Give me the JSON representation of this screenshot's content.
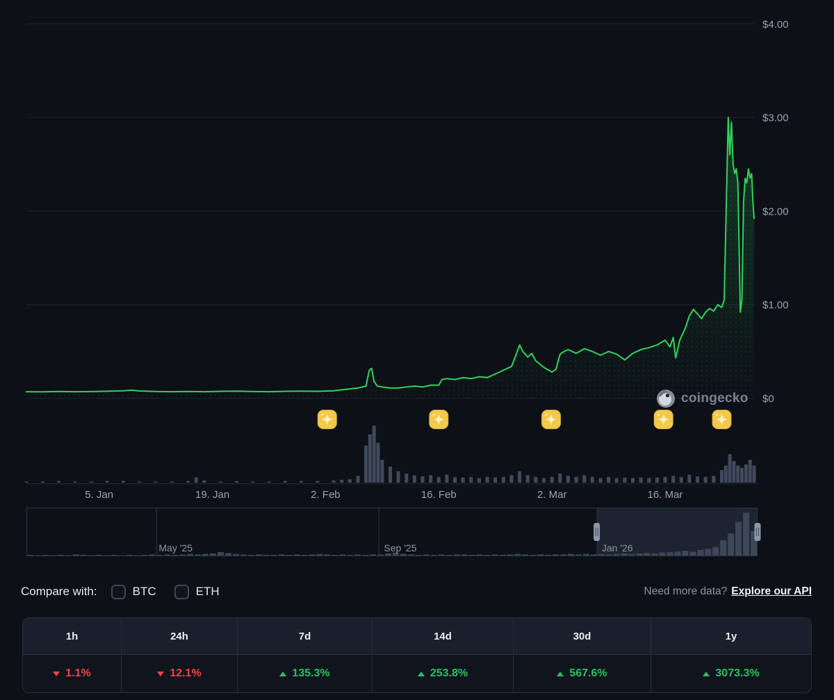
{
  "colors": {
    "background": "#0d1117",
    "grid": "#1d2530",
    "axis_text": "#97a2b4",
    "price_line": "#2fd35f",
    "volume_bar": "#3f4a5d",
    "navigator_bar": "#3c4759",
    "navigator_selection": "rgba(128,150,186,0.15)",
    "navigator_border": "#2b3442",
    "up": "#2ebd62",
    "down": "#f04545",
    "event_badge": "#f2c94c"
  },
  "watermark": {
    "text": "coingecko"
  },
  "compare": {
    "label": "Compare with:",
    "options": [
      {
        "label": "BTC",
        "checked": false
      },
      {
        "label": "ETH",
        "checked": false
      }
    ]
  },
  "api_prompt": {
    "text": "Need more data?",
    "link": "Explore our API"
  },
  "performance": {
    "columns": [
      {
        "label": "1h",
        "value": "1.1%",
        "direction": "down"
      },
      {
        "label": "24h",
        "value": "12.1%",
        "direction": "down"
      },
      {
        "label": "7d",
        "value": "135.3%",
        "direction": "up"
      },
      {
        "label": "14d",
        "value": "253.8%",
        "direction": "up"
      },
      {
        "label": "30d",
        "value": "567.6%",
        "direction": "up"
      },
      {
        "label": "1y",
        "value": "3073.3%",
        "direction": "up"
      }
    ]
  },
  "chart_data": {
    "type": "line",
    "price": {
      "unit": "USD",
      "ylim": [
        0,
        4
      ],
      "day_range": [
        0,
        90
      ],
      "y_ticks": [
        {
          "value": 0,
          "label": "$0"
        },
        {
          "value": 1,
          "label": "$1.00"
        },
        {
          "value": 2,
          "label": "$2.00"
        },
        {
          "value": 3,
          "label": "$3.00"
        },
        {
          "value": 4,
          "label": "$4.00"
        }
      ],
      "x_ticks": [
        {
          "day": 9,
          "label": "5. Jan"
        },
        {
          "day": 23,
          "label": "19. Jan"
        },
        {
          "day": 37,
          "label": "2. Feb"
        },
        {
          "day": 51,
          "label": "16. Feb"
        },
        {
          "day": 65,
          "label": "2. Mar"
        },
        {
          "day": 79,
          "label": "16. Mar"
        }
      ],
      "points": [
        [
          0,
          0.07
        ],
        [
          2,
          0.068
        ],
        [
          4,
          0.072
        ],
        [
          6,
          0.07
        ],
        [
          8,
          0.071
        ],
        [
          10,
          0.075
        ],
        [
          12,
          0.08
        ],
        [
          13,
          0.086
        ],
        [
          14,
          0.078
        ],
        [
          16,
          0.072
        ],
        [
          18,
          0.07
        ],
        [
          20,
          0.073
        ],
        [
          22,
          0.07
        ],
        [
          24,
          0.074
        ],
        [
          26,
          0.076
        ],
        [
          28,
          0.072
        ],
        [
          30,
          0.07
        ],
        [
          32,
          0.074
        ],
        [
          34,
          0.076
        ],
        [
          36,
          0.074
        ],
        [
          38,
          0.08
        ],
        [
          39,
          0.09
        ],
        [
          40,
          0.1
        ],
        [
          41,
          0.11
        ],
        [
          42,
          0.13
        ],
        [
          42.4,
          0.3
        ],
        [
          42.7,
          0.32
        ],
        [
          43,
          0.18
        ],
        [
          43.4,
          0.13
        ],
        [
          44,
          0.12
        ],
        [
          45,
          0.11
        ],
        [
          46,
          0.11
        ],
        [
          47,
          0.12
        ],
        [
          48,
          0.13
        ],
        [
          49,
          0.12
        ],
        [
          50,
          0.14
        ],
        [
          51,
          0.14
        ],
        [
          51.4,
          0.2
        ],
        [
          52,
          0.21
        ],
        [
          53,
          0.2
        ],
        [
          54,
          0.22
        ],
        [
          55,
          0.21
        ],
        [
          56,
          0.23
        ],
        [
          57,
          0.22
        ],
        [
          58,
          0.26
        ],
        [
          59,
          0.3
        ],
        [
          60,
          0.34
        ],
        [
          60.5,
          0.45
        ],
        [
          61,
          0.57
        ],
        [
          61.4,
          0.5
        ],
        [
          62,
          0.44
        ],
        [
          62.5,
          0.48
        ],
        [
          63,
          0.4
        ],
        [
          64,
          0.33
        ],
        [
          65,
          0.28
        ],
        [
          65.5,
          0.31
        ],
        [
          66,
          0.47
        ],
        [
          66.5,
          0.5
        ],
        [
          67,
          0.52
        ],
        [
          68,
          0.48
        ],
        [
          69,
          0.53
        ],
        [
          70,
          0.5
        ],
        [
          71,
          0.46
        ],
        [
          72,
          0.5
        ],
        [
          73,
          0.47
        ],
        [
          74,
          0.41
        ],
        [
          75,
          0.48
        ],
        [
          76,
          0.52
        ],
        [
          77,
          0.54
        ],
        [
          78,
          0.57
        ],
        [
          79,
          0.62
        ],
        [
          79.6,
          0.55
        ],
        [
          80,
          0.65
        ],
        [
          80.3,
          0.43
        ],
        [
          80.8,
          0.62
        ],
        [
          81.5,
          0.75
        ],
        [
          82,
          0.88
        ],
        [
          82.5,
          0.95
        ],
        [
          83,
          0.9
        ],
        [
          83.5,
          0.85
        ],
        [
          84,
          0.92
        ],
        [
          84.5,
          0.96
        ],
        [
          85,
          0.93
        ],
        [
          85.5,
          1.0
        ],
        [
          86,
          0.97
        ],
        [
          86.3,
          1.05
        ],
        [
          86.6,
          2.2
        ],
        [
          86.8,
          3.0
        ],
        [
          87,
          2.6
        ],
        [
          87.2,
          2.95
        ],
        [
          87.4,
          2.5
        ],
        [
          87.6,
          2.4
        ],
        [
          87.8,
          2.45
        ],
        [
          88,
          2.3
        ],
        [
          88.15,
          1.6
        ],
        [
          88.3,
          0.92
        ],
        [
          88.5,
          1.05
        ],
        [
          88.7,
          2.1
        ],
        [
          88.9,
          2.35
        ],
        [
          89.1,
          2.3
        ],
        [
          89.3,
          2.45
        ],
        [
          89.5,
          2.35
        ],
        [
          89.7,
          2.4
        ],
        [
          89.85,
          2.1
        ],
        [
          90,
          1.92
        ]
      ]
    },
    "volume": {
      "unit": "relative",
      "points": [
        [
          0,
          0.02
        ],
        [
          2,
          0.02
        ],
        [
          4,
          0.03
        ],
        [
          6,
          0.02
        ],
        [
          8,
          0.02
        ],
        [
          10,
          0.03
        ],
        [
          12,
          0.03
        ],
        [
          14,
          0.02
        ],
        [
          16,
          0.02
        ],
        [
          18,
          0.02
        ],
        [
          20,
          0.03
        ],
        [
          21,
          0.09
        ],
        [
          22,
          0.04
        ],
        [
          24,
          0.02
        ],
        [
          26,
          0.03
        ],
        [
          28,
          0.02
        ],
        [
          30,
          0.02
        ],
        [
          32,
          0.03
        ],
        [
          34,
          0.03
        ],
        [
          36,
          0.03
        ],
        [
          38,
          0.04
        ],
        [
          39,
          0.05
        ],
        [
          40,
          0.06
        ],
        [
          41,
          0.12
        ],
        [
          42,
          0.65
        ],
        [
          42.5,
          0.85
        ],
        [
          43,
          1.0
        ],
        [
          43.5,
          0.7
        ],
        [
          44,
          0.4
        ],
        [
          45,
          0.28
        ],
        [
          46,
          0.2
        ],
        [
          47,
          0.16
        ],
        [
          48,
          0.13
        ],
        [
          49,
          0.11
        ],
        [
          50,
          0.13
        ],
        [
          51,
          0.1
        ],
        [
          52,
          0.14
        ],
        [
          53,
          0.1
        ],
        [
          54,
          0.09
        ],
        [
          55,
          0.1
        ],
        [
          56,
          0.08
        ],
        [
          57,
          0.1
        ],
        [
          58,
          0.09
        ],
        [
          59,
          0.1
        ],
        [
          60,
          0.13
        ],
        [
          61,
          0.2
        ],
        [
          62,
          0.13
        ],
        [
          63,
          0.1
        ],
        [
          64,
          0.08
        ],
        [
          65,
          0.1
        ],
        [
          66,
          0.16
        ],
        [
          67,
          0.12
        ],
        [
          68,
          0.1
        ],
        [
          69,
          0.13
        ],
        [
          70,
          0.1
        ],
        [
          71,
          0.08
        ],
        [
          72,
          0.1
        ],
        [
          73,
          0.08
        ],
        [
          74,
          0.09
        ],
        [
          75,
          0.08
        ],
        [
          76,
          0.09
        ],
        [
          77,
          0.08
        ],
        [
          78,
          0.09
        ],
        [
          79,
          0.1
        ],
        [
          80,
          0.12
        ],
        [
          81,
          0.1
        ],
        [
          82,
          0.14
        ],
        [
          83,
          0.11
        ],
        [
          84,
          0.1
        ],
        [
          85,
          0.12
        ],
        [
          86,
          0.22
        ],
        [
          86.5,
          0.3
        ],
        [
          87,
          0.5
        ],
        [
          87.5,
          0.38
        ],
        [
          88,
          0.3
        ],
        [
          88.5,
          0.26
        ],
        [
          89,
          0.32
        ],
        [
          89.5,
          0.4
        ],
        [
          90,
          0.3
        ]
      ]
    },
    "events": {
      "days": [
        37.2,
        51,
        64.9,
        78.8,
        86
      ]
    },
    "navigator": {
      "labels": [
        {
          "pos": 0.181,
          "label": "May '25"
        },
        {
          "pos": 0.489,
          "label": "Sep '25"
        },
        {
          "pos": 0.787,
          "label": "Jan '26"
        }
      ],
      "dividers": [
        0.178,
        0.482,
        0.781
      ],
      "selection": {
        "start": 0.78,
        "end": 1.0
      },
      "values": [
        0.03,
        0.02,
        0.03,
        0.02,
        0.03,
        0.02,
        0.04,
        0.03,
        0.02,
        0.03,
        0.02,
        0.03,
        0.02,
        0.03,
        0.02,
        0.03,
        0.04,
        0.03,
        0.04,
        0.03,
        0.04,
        0.05,
        0.04,
        0.05,
        0.06,
        0.09,
        0.07,
        0.05,
        0.04,
        0.03,
        0.04,
        0.03,
        0.03,
        0.04,
        0.03,
        0.04,
        0.03,
        0.04,
        0.05,
        0.04,
        0.03,
        0.04,
        0.03,
        0.04,
        0.03,
        0.04,
        0.04,
        0.06,
        0.08,
        0.05,
        0.04,
        0.03,
        0.04,
        0.03,
        0.04,
        0.03,
        0.04,
        0.04,
        0.03,
        0.04,
        0.03,
        0.04,
        0.03,
        0.04,
        0.05,
        0.04,
        0.03,
        0.04,
        0.03,
        0.04,
        0.04,
        0.05,
        0.04,
        0.05,
        0.04,
        0.05,
        0.04,
        0.05,
        0.06,
        0.05,
        0.06,
        0.07,
        0.06,
        0.08,
        0.09,
        0.1,
        0.12,
        0.1,
        0.14,
        0.16,
        0.2,
        0.35,
        0.5,
        0.75,
        0.95,
        0.55
      ]
    }
  }
}
